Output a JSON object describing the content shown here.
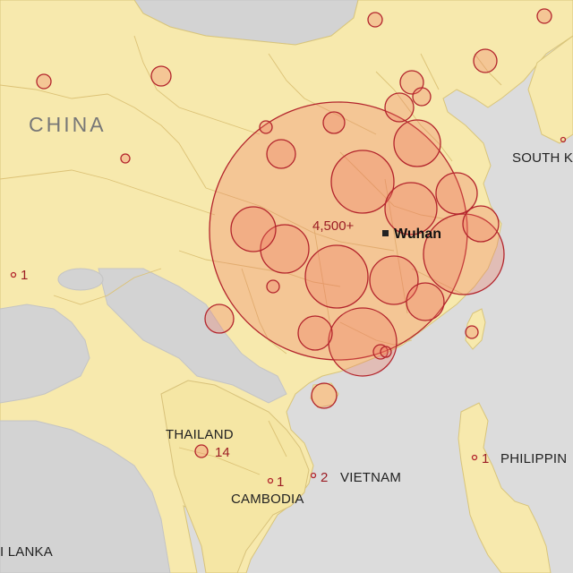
{
  "labels": {
    "china": "CHINA",
    "south_korea": "SOUTH K",
    "thailand": "THAILAND",
    "vietnam": "VIETNAM",
    "cambodia": "CAMBODIA",
    "philippines": "PHILIPPIN",
    "sri_lanka": "I LANKA"
  },
  "counts": {
    "china": "4,500+",
    "thailand": "14",
    "vietnam": "2",
    "cambodia": "1",
    "philippines": "1",
    "west": "1"
  },
  "city": {
    "name": "Wuhan"
  },
  "colors": {
    "land": "#f7e9ad",
    "sea": "#dcdcdc",
    "bubble_fill": "#ee7860",
    "bubble_stroke": "#b3242c",
    "count_text": "#9b1c24"
  }
}
